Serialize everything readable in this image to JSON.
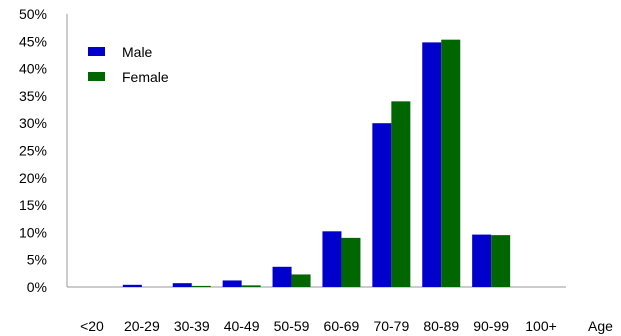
{
  "chart_data": {
    "type": "bar",
    "title": "",
    "xlabel": "Age",
    "ylabel": "",
    "categories": [
      "<20",
      "20-29",
      "30-39",
      "40-49",
      "50-59",
      "60-69",
      "70-79",
      "80-89",
      "90-99",
      "100+"
    ],
    "series": [
      {
        "name": "Male",
        "color": "#0000cc",
        "values": [
          0,
          0.4,
          0.7,
          1.2,
          3.7,
          10.2,
          30.0,
          44.8,
          9.6,
          0
        ]
      },
      {
        "name": "Female",
        "color": "#006600",
        "values": [
          0,
          0,
          0.2,
          0.3,
          2.3,
          9.0,
          34.0,
          45.3,
          9.5,
          0
        ]
      }
    ],
    "ylim": [
      0,
      50
    ],
    "yticks": [
      0,
      5,
      10,
      15,
      20,
      25,
      30,
      35,
      40,
      45,
      50
    ],
    "ytick_format": "percent",
    "grid": false,
    "legend_position": "top-left"
  }
}
